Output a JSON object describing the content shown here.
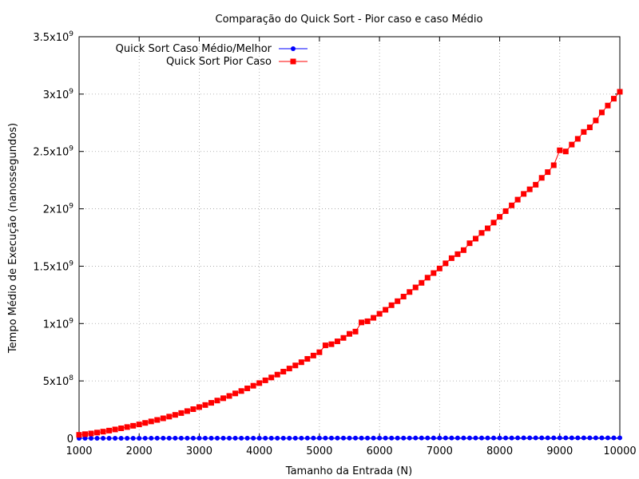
{
  "chart_data": {
    "type": "line",
    "title": "Comparação do Quick Sort - Pior caso e caso Médio",
    "xlabel": "Tamanho da Entrada (N)",
    "ylabel": "Tempo Médio de Execução (nanossegundos)",
    "xlim": [
      1000,
      10000
    ],
    "ylim": [
      0,
      3500000000
    ],
    "grid": true,
    "legend_position": "top-left",
    "x_ticks": [
      {
        "value": 1000,
        "label": "1000"
      },
      {
        "value": 2000,
        "label": "2000"
      },
      {
        "value": 3000,
        "label": "3000"
      },
      {
        "value": 4000,
        "label": "4000"
      },
      {
        "value": 5000,
        "label": "5000"
      },
      {
        "value": 6000,
        "label": "6000"
      },
      {
        "value": 7000,
        "label": "7000"
      },
      {
        "value": 8000,
        "label": "8000"
      },
      {
        "value": 9000,
        "label": "9000"
      },
      {
        "value": 10000,
        "label": "10000"
      }
    ],
    "y_ticks": [
      {
        "value": 0,
        "base": "0",
        "exp": ""
      },
      {
        "value": 500000000,
        "base": "5x10",
        "exp": "8"
      },
      {
        "value": 1000000000,
        "base": "1x10",
        "exp": "9"
      },
      {
        "value": 1500000000,
        "base": "1.5x10",
        "exp": "9"
      },
      {
        "value": 2000000000,
        "base": "2x10",
        "exp": "9"
      },
      {
        "value": 2500000000,
        "base": "2.5x10",
        "exp": "9"
      },
      {
        "value": 3000000000,
        "base": "3x10",
        "exp": "9"
      },
      {
        "value": 3500000000,
        "base": "3.5x10",
        "exp": "9"
      }
    ],
    "x": [
      1000,
      1100,
      1200,
      1300,
      1400,
      1500,
      1600,
      1700,
      1800,
      1900,
      2000,
      2100,
      2200,
      2300,
      2400,
      2500,
      2600,
      2700,
      2800,
      2900,
      3000,
      3100,
      3200,
      3300,
      3400,
      3500,
      3600,
      3700,
      3800,
      3900,
      4000,
      4100,
      4200,
      4300,
      4400,
      4500,
      4600,
      4700,
      4800,
      4900,
      5000,
      5100,
      5200,
      5300,
      5400,
      5500,
      5600,
      5700,
      5800,
      5900,
      6000,
      6100,
      6200,
      6300,
      6400,
      6500,
      6600,
      6700,
      6800,
      6900,
      7000,
      7100,
      7200,
      7300,
      7400,
      7500,
      7600,
      7700,
      7800,
      7900,
      8000,
      8100,
      8200,
      8300,
      8400,
      8500,
      8600,
      8700,
      8800,
      8900,
      9000,
      9100,
      9200,
      9300,
      9400,
      9500,
      9600,
      9700,
      9800,
      9900,
      10000
    ],
    "series": [
      {
        "name": "Quick Sort Caso Médio/Melhor",
        "color": "#0000ff",
        "marker": "circle",
        "values": [
          200000,
          220000,
          240000,
          260000,
          280000,
          300000,
          320000,
          340000,
          360000,
          380000,
          400000,
          430000,
          460000,
          490000,
          520000,
          550000,
          580000,
          610000,
          640000,
          670000,
          700000,
          730000,
          760000,
          790000,
          820000,
          850000,
          880000,
          910000,
          940000,
          970000,
          1000000,
          1040000,
          1080000,
          1120000,
          1160000,
          1200000,
          1240000,
          1280000,
          1320000,
          1360000,
          1400000,
          1450000,
          1500000,
          1550000,
          1600000,
          1650000,
          1700000,
          1750000,
          1800000,
          1850000,
          1900000,
          1950000,
          2000000,
          2050000,
          2100000,
          2150000,
          2200000,
          2250000,
          2300000,
          2350000,
          2400000,
          2450000,
          2500000,
          2550000,
          2600000,
          2650000,
          2700000,
          2750000,
          2800000,
          2850000,
          2900000,
          2950000,
          3000000,
          3050000,
          3100000,
          3150000,
          3200000,
          3250000,
          3300000,
          3350000,
          3400000,
          3450000,
          3500000,
          3550000,
          3600000,
          3650000,
          3700000,
          3750000,
          3800000,
          3850000,
          3900000
        ]
      },
      {
        "name": "Quick Sort Pior Caso",
        "color": "#ff0000",
        "marker": "square",
        "values": [
          30000000,
          36000000,
          42000000,
          50000000,
          58000000,
          67000000,
          77000000,
          87000000,
          98000000,
          109000000,
          121000000,
          134000000,
          147000000,
          160000000,
          174000000,
          189000000,
          204000000,
          220000000,
          237000000,
          254000000,
          272000000,
          290000000,
          309000000,
          329000000,
          349000000,
          369000000,
          391000000,
          412000000,
          435000000,
          458000000,
          481000000,
          505000000,
          530000000,
          555000000,
          581000000,
          608000000,
          635000000,
          663000000,
          692000000,
          721000000,
          750000000,
          810000000,
          820000000,
          845000000,
          875000000,
          910000000,
          930000000,
          1010000000,
          1020000000,
          1050000000,
          1085000000,
          1120000000,
          1160000000,
          1195000000,
          1235000000,
          1275000000,
          1315000000,
          1355000000,
          1400000000,
          1440000000,
          1480000000,
          1525000000,
          1570000000,
          1605000000,
          1640000000,
          1700000000,
          1740000000,
          1790000000,
          1830000000,
          1880000000,
          1930000000,
          1980000000,
          2030000000,
          2080000000,
          2130000000,
          2170000000,
          2210000000,
          2270000000,
          2320000000,
          2380000000,
          2510000000,
          2500000000,
          2560000000,
          2610000000,
          2670000000,
          2710000000,
          2770000000,
          2840000000,
          2900000000,
          2960000000,
          3020000000
        ]
      }
    ]
  }
}
